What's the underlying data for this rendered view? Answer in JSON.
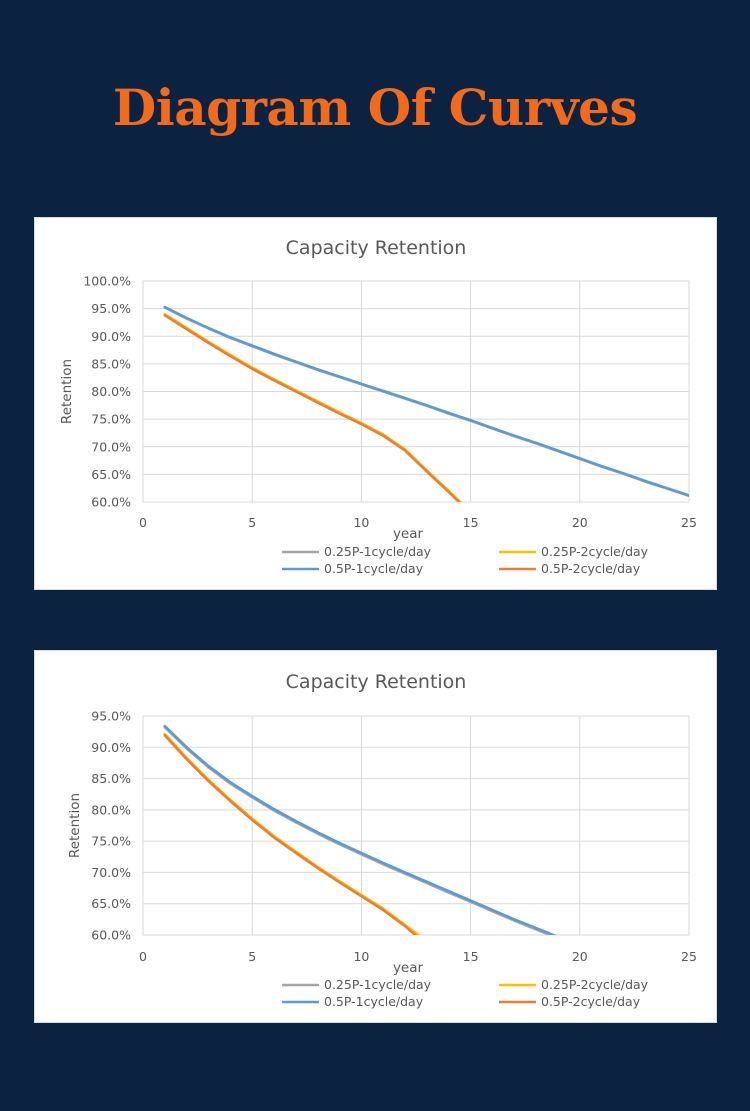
{
  "page": {
    "title": "Diagram Of Curves"
  },
  "chart_data": [
    {
      "type": "line",
      "title": "Capacity Retention",
      "xlabel": "year",
      "ylabel": "Retention",
      "xlim": [
        0,
        25
      ],
      "ylim": [
        60,
        100
      ],
      "x_ticks": [
        0,
        5,
        10,
        15,
        20,
        25
      ],
      "x_tick_labels": [
        "0",
        "5",
        "10",
        "15",
        "20",
        "25"
      ],
      "y_ticks": [
        60,
        65,
        70,
        75,
        80,
        85,
        90,
        95,
        100
      ],
      "y_tick_labels": [
        "60.0%",
        "65.0%",
        "70.0%",
        "75.0%",
        "80.0%",
        "85.0%",
        "90.0%",
        "95.0%",
        "100.0%"
      ],
      "grid": true,
      "legend_position": "bottom",
      "series": [
        {
          "name": "0.25P-1cycle/day",
          "color": "#a5a5a5",
          "x": [
            1,
            2,
            3,
            4,
            5,
            6,
            7,
            8,
            9,
            10,
            11,
            12,
            13,
            14,
            15,
            16,
            17,
            18,
            19,
            20,
            21,
            22,
            23,
            24,
            25
          ],
          "y": [
            95.2,
            93.2,
            91.4,
            89.7,
            88.2,
            86.7,
            85.3,
            83.9,
            82.6,
            81.3,
            80.0,
            78.7,
            77.4,
            76.0,
            74.7,
            73.3,
            71.9,
            70.6,
            69.2,
            67.8,
            66.4,
            65.1,
            63.7,
            62.4,
            61.1
          ]
        },
        {
          "name": "0.25P-2cycle/day",
          "color": "#ffc000",
          "x": [
            1,
            2,
            3,
            4,
            5,
            6,
            7,
            8,
            9,
            10,
            11,
            12,
            13,
            14,
            14.6
          ],
          "y": [
            94.0,
            91.5,
            89.0,
            86.6,
            84.3,
            82.2,
            80.2,
            78.2,
            76.2,
            74.3,
            72.2,
            69.5,
            65.7,
            62.0,
            59.7
          ]
        },
        {
          "name": "0.5P-1cycle/day",
          "color": "#5b9bd5",
          "x": [
            1,
            2,
            3,
            4,
            5,
            6,
            7,
            8,
            9,
            10,
            11,
            12,
            13,
            14,
            15,
            16,
            17,
            18,
            19,
            20,
            21,
            22,
            23,
            24,
            25
          ],
          "y": [
            95.3,
            93.3,
            91.5,
            89.8,
            88.3,
            86.8,
            85.4,
            84.0,
            82.7,
            81.4,
            80.1,
            78.8,
            77.5,
            76.1,
            74.8,
            73.4,
            72.0,
            70.7,
            69.3,
            67.9,
            66.5,
            65.2,
            63.8,
            62.5,
            61.2
          ]
        },
        {
          "name": "0.5P-2cycle/day",
          "color": "#ed7d31",
          "x": [
            1,
            2,
            3,
            4,
            5,
            6,
            7,
            8,
            9,
            10,
            11,
            12,
            13,
            14,
            14.6
          ],
          "y": [
            93.8,
            91.3,
            88.8,
            86.4,
            84.1,
            82.0,
            80.0,
            78.0,
            76.0,
            74.1,
            72.0,
            69.3,
            65.5,
            61.8,
            59.5
          ]
        }
      ]
    },
    {
      "type": "line",
      "title": "Capacity Retention",
      "xlabel": "year",
      "ylabel": "Retention",
      "xlim": [
        0,
        25
      ],
      "ylim": [
        60,
        95
      ],
      "x_ticks": [
        0,
        5,
        10,
        15,
        20,
        25
      ],
      "x_tick_labels": [
        "0",
        "5",
        "10",
        "15",
        "20",
        "25"
      ],
      "y_ticks": [
        60,
        65,
        70,
        75,
        80,
        85,
        90,
        95
      ],
      "y_tick_labels": [
        "60.0%",
        "65.0%",
        "70.0%",
        "75.0%",
        "80.0%",
        "85.0%",
        "90.0%",
        "95.0%"
      ],
      "grid": true,
      "legend_position": "bottom",
      "series": [
        {
          "name": "0.25P-1cycle/day",
          "color": "#a5a5a5",
          "x": [
            1,
            2,
            3,
            4,
            5,
            6,
            7,
            8,
            9,
            10,
            11,
            12,
            13,
            14,
            15,
            16,
            17,
            18,
            19,
            20
          ],
          "y": [
            93.2,
            89.8,
            86.8,
            84.2,
            82.0,
            79.9,
            78.0,
            76.2,
            74.5,
            72.9,
            71.3,
            69.8,
            68.3,
            66.8,
            65.3,
            63.8,
            62.3,
            60.9,
            59.5,
            58.1
          ]
        },
        {
          "name": "0.25P-2cycle/day",
          "color": "#ffc000",
          "x": [
            1,
            2,
            3,
            4,
            5,
            6,
            7,
            8,
            9,
            10,
            11,
            12,
            12.7
          ],
          "y": [
            92.1,
            88.3,
            84.8,
            81.6,
            78.6,
            75.8,
            73.3,
            70.9,
            68.6,
            66.4,
            64.2,
            61.6,
            59.8
          ]
        },
        {
          "name": "0.5P-1cycle/day",
          "color": "#5b9bd5",
          "x": [
            1,
            2,
            3,
            4,
            5,
            6,
            7,
            8,
            9,
            10,
            11,
            12,
            13,
            14,
            15,
            16,
            17,
            18,
            19,
            20
          ],
          "y": [
            93.4,
            90.0,
            87.0,
            84.4,
            82.2,
            80.1,
            78.2,
            76.4,
            74.7,
            73.1,
            71.5,
            70.0,
            68.5,
            67.0,
            65.5,
            64.0,
            62.5,
            61.1,
            59.7,
            58.3
          ]
        },
        {
          "name": "0.5P-2cycle/day",
          "color": "#ed7d31",
          "x": [
            1,
            2,
            3,
            4,
            5,
            6,
            7,
            8,
            9,
            10,
            11,
            12,
            12.6
          ],
          "y": [
            91.9,
            88.1,
            84.6,
            81.4,
            78.4,
            75.6,
            73.1,
            70.7,
            68.4,
            66.2,
            64.0,
            61.4,
            59.6
          ]
        }
      ]
    }
  ]
}
